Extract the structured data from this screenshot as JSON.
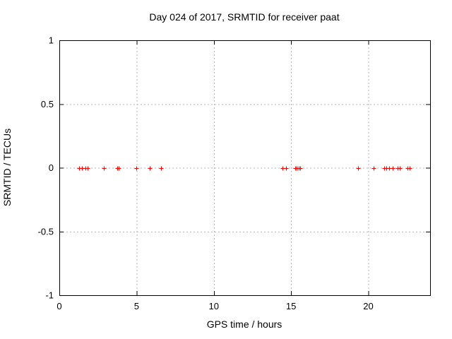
{
  "chart_data": {
    "type": "scatter",
    "title": "Day 024 of 2017, SRMTID for receiver paat",
    "xlabel": "GPS time / hours",
    "ylabel": "SRMTID / TECUs",
    "xlim": [
      0,
      24
    ],
    "ylim": [
      -1,
      1
    ],
    "xticks": [
      0,
      5,
      10,
      15,
      20
    ],
    "xtick_labels": [
      "0",
      "5",
      "10",
      "15",
      "20"
    ],
    "yticks": [
      -1,
      -0.5,
      0,
      0.5,
      1
    ],
    "ytick_labels": [
      "-1",
      "-0.5",
      "0",
      "0.5",
      "1"
    ],
    "grid": true,
    "legend": false,
    "colors": {
      "marker": "#ff0000",
      "grid": "#b4b4b4",
      "axis": "#000000",
      "background": "#ffffff"
    },
    "series": [
      {
        "name": "SRMTID",
        "marker": "plus",
        "color": "#ff0000",
        "x": [
          1.27,
          1.45,
          1.71,
          1.81,
          2.89,
          3.73,
          3.83,
          5.0,
          5.84,
          6.6,
          14.45,
          14.67,
          15.25,
          15.34,
          15.48,
          15.57,
          19.32,
          20.36,
          21.03,
          21.18,
          21.34,
          21.59,
          21.9,
          22.05,
          22.55,
          22.69
        ],
        "y": [
          0,
          0,
          0,
          0,
          0,
          0,
          0,
          0,
          0,
          0,
          0,
          0,
          0,
          0,
          0,
          0,
          0,
          0,
          0,
          0,
          0,
          0,
          0,
          0,
          0,
          0
        ]
      }
    ]
  }
}
